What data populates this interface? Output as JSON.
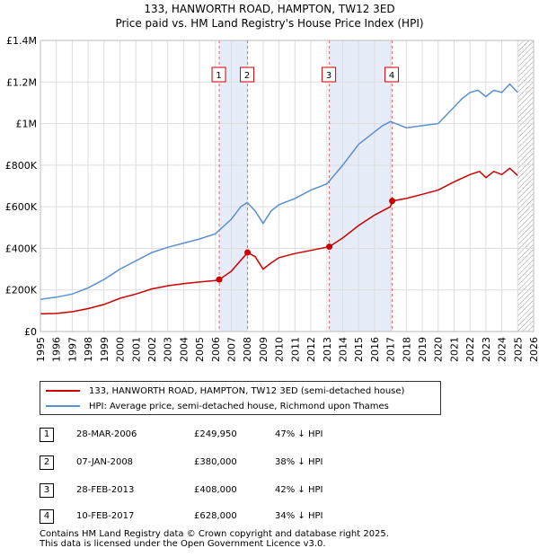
{
  "title_line1": "133, HANWORTH ROAD, HAMPTON, TW12 3ED",
  "title_line2": "Price paid vs. HM Land Registry's House Price Index (HPI)",
  "chart_data": {
    "type": "line",
    "title": "133, HANWORTH ROAD, HAMPTON, TW12 3ED — Price paid vs. HM Land Registry's House Price Index (HPI)",
    "xlabel": "",
    "ylabel": "",
    "xlim": [
      1995,
      2026
    ],
    "ylim": [
      0,
      1400000
    ],
    "x_ticks": [
      "1995",
      "1996",
      "1997",
      "1998",
      "1999",
      "2000",
      "2001",
      "2002",
      "2003",
      "2004",
      "2005",
      "2006",
      "2007",
      "2008",
      "2009",
      "2010",
      "2011",
      "2012",
      "2013",
      "2014",
      "2015",
      "2016",
      "2017",
      "2018",
      "2019",
      "2020",
      "2021",
      "2022",
      "2023",
      "2024",
      "2025",
      "2026"
    ],
    "y_ticks": [
      {
        "value": 0,
        "label": "£0"
      },
      {
        "value": 200000,
        "label": "£200K"
      },
      {
        "value": 400000,
        "label": "£400K"
      },
      {
        "value": 600000,
        "label": "£600K"
      },
      {
        "value": 800000,
        "label": "£800K"
      },
      {
        "value": 1000000,
        "label": "£1M"
      },
      {
        "value": 1200000,
        "label": "£1.2M"
      },
      {
        "value": 1400000,
        "label": "£1.4M"
      }
    ],
    "grid": true,
    "series": [
      {
        "name": "133, HANWORTH ROAD, HAMPTON, TW12 3ED (semi-detached house)",
        "color": "#cc0000",
        "x": [
          1995.0,
          1996.0,
          1997.0,
          1998.0,
          1999.0,
          2000.0,
          2001.0,
          2002.0,
          2003.0,
          2004.0,
          2005.0,
          2006.0,
          2006.24,
          2007.0,
          2008.02,
          2008.5,
          2009.0,
          2009.5,
          2010.0,
          2011.0,
          2012.0,
          2013.16,
          2014.0,
          2015.0,
          2016.0,
          2017.0,
          2017.11,
          2018.0,
          2019.0,
          2020.0,
          2021.0,
          2022.0,
          2022.6,
          2023.0,
          2023.5,
          2024.0,
          2024.5,
          2025.0
        ],
        "values": [
          85000,
          87000,
          95000,
          110000,
          130000,
          160000,
          180000,
          205000,
          220000,
          230000,
          238000,
          245000,
          249950,
          290000,
          380000,
          360000,
          300000,
          330000,
          355000,
          375000,
          390000,
          408000,
          450000,
          510000,
          560000,
          600000,
          628000,
          640000,
          660000,
          680000,
          720000,
          755000,
          770000,
          740000,
          770000,
          755000,
          785000,
          750000
        ]
      },
      {
        "name": "HPI: Average price, semi-detached house, Richmond upon Thames",
        "color": "#5b8fd0",
        "x": [
          1995.0,
          1996.0,
          1997.0,
          1998.0,
          1999.0,
          2000.0,
          2001.0,
          2002.0,
          2003.0,
          2004.0,
          2005.0,
          2006.0,
          2007.0,
          2007.6,
          2008.0,
          2008.5,
          2009.0,
          2009.5,
          2010.0,
          2011.0,
          2012.0,
          2013.0,
          2014.0,
          2015.0,
          2016.0,
          2016.5,
          2017.0,
          2018.0,
          2019.0,
          2020.0,
          2021.0,
          2021.5,
          2022.0,
          2022.5,
          2023.0,
          2023.5,
          2024.0,
          2024.5,
          2025.0
        ],
        "values": [
          155000,
          165000,
          180000,
          210000,
          250000,
          300000,
          340000,
          380000,
          405000,
          425000,
          445000,
          470000,
          540000,
          600000,
          620000,
          580000,
          520000,
          580000,
          610000,
          640000,
          680000,
          710000,
          800000,
          900000,
          960000,
          990000,
          1010000,
          980000,
          990000,
          1000000,
          1080000,
          1120000,
          1150000,
          1160000,
          1130000,
          1160000,
          1150000,
          1190000,
          1150000
        ]
      }
    ],
    "sale_points": [
      {
        "label": "1",
        "x": 2006.24,
        "value": 249950
      },
      {
        "label": "2",
        "x": 2008.02,
        "value": 380000
      },
      {
        "label": "3",
        "x": 2013.16,
        "value": 408000
      },
      {
        "label": "4",
        "x": 2017.11,
        "value": 628000
      }
    ],
    "shaded_spans": [
      [
        2006.24,
        2008.02
      ],
      [
        2013.16,
        2017.11
      ]
    ],
    "forecast_from": 2025.0
  },
  "legend": [
    {
      "label": "133, HANWORTH ROAD, HAMPTON, TW12 3ED (semi-detached house)",
      "color": "#cc0000"
    },
    {
      "label": "HPI: Average price, semi-detached house, Richmond upon Thames",
      "color": "#5b8fd0"
    }
  ],
  "transactions": [
    {
      "num": "1",
      "date": "28-MAR-2006",
      "price": "£249,950",
      "hpi": "47% ↓ HPI"
    },
    {
      "num": "2",
      "date": "07-JAN-2008",
      "price": "£380,000",
      "hpi": "38% ↓ HPI"
    },
    {
      "num": "3",
      "date": "28-FEB-2013",
      "price": "£408,000",
      "hpi": "42% ↓ HPI"
    },
    {
      "num": "4",
      "date": "10-FEB-2017",
      "price": "£628,000",
      "hpi": "34% ↓ HPI"
    }
  ],
  "footer_line1": "Contains HM Land Registry data © Crown copyright and database right 2025.",
  "footer_line2": "This data is licensed under the Open Government Licence v3.0."
}
